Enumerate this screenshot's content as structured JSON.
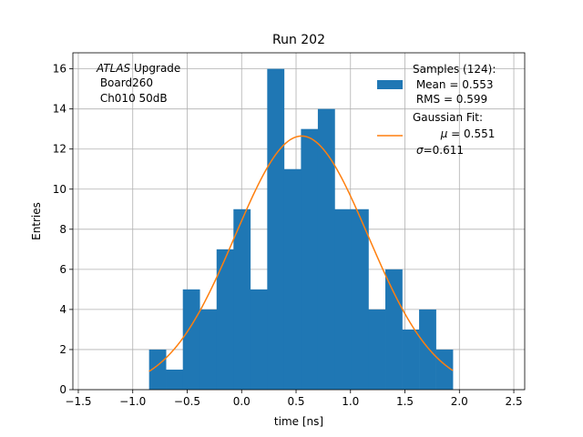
{
  "chart_data": {
    "type": "bar",
    "title": "Run 202",
    "xlabel": "time [ns]",
    "ylabel": "Entries",
    "xlim": [
      -1.55,
      2.6
    ],
    "ylim": [
      0,
      16.8
    ],
    "grid": true,
    "xticks": [
      -1.5,
      -1.0,
      -0.5,
      0.0,
      0.5,
      1.0,
      1.5,
      2.0,
      2.5
    ],
    "xtick_labels": [
      "−1.5",
      "−1.0",
      "−0.5",
      "0.0",
      "0.5",
      "1.0",
      "1.5",
      "2.0",
      "2.5"
    ],
    "yticks": [
      0,
      2,
      4,
      6,
      8,
      10,
      12,
      14,
      16
    ],
    "ytick_labels": [
      "0",
      "2",
      "4",
      "6",
      "8",
      "10",
      "12",
      "14",
      "16"
    ],
    "histogram": {
      "name": "Samples (124):",
      "color": "#1f77b4",
      "bin_edges": [
        -0.85,
        -0.695,
        -0.54,
        -0.385,
        -0.23,
        -0.075,
        0.08,
        0.235,
        0.39,
        0.545,
        0.7,
        0.855,
        1.01,
        1.165,
        1.32,
        1.475,
        1.63,
        1.785,
        1.94
      ],
      "counts": [
        2,
        1,
        5,
        4,
        7,
        9,
        5,
        16,
        11,
        13,
        14,
        9,
        9,
        4,
        6,
        3,
        4,
        2
      ]
    },
    "fit": {
      "name": "Gaussian Fit:",
      "color": "#ff7f0e",
      "x_range": [
        -0.85,
        1.94
      ],
      "mu": 0.551,
      "sigma": 0.611,
      "peak": 12.65
    },
    "legend": {
      "position": "top-right",
      "samples_title": "Samples (124):",
      "samples_mean": " Mean = 0.553",
      "samples_rms": " RMS = 0.599",
      "fit_title": "Gaussian Fit:",
      "fit_mu_symbol": "μ",
      "fit_mu_value": " = 0.551",
      "fit_sigma_symbol": "σ",
      "fit_sigma_value": "=0.611"
    },
    "annotation": {
      "position": "top-left",
      "line1_italic": "ATLAS",
      "line1_rest": " Upgrade",
      "line2": " Board260",
      "line3": " Ch010 50dB"
    }
  }
}
